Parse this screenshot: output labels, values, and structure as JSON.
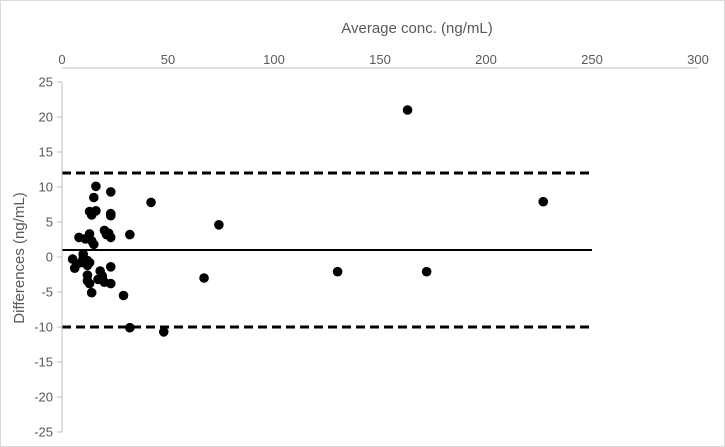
{
  "chart_data": {
    "type": "scatter",
    "title": "",
    "xlabel": "Average conc. (ng/mL)",
    "ylabel": "Differences (ng/mL)",
    "xlim": [
      0,
      300
    ],
    "ylim": [
      -25,
      25
    ],
    "x_ticks": [
      "0",
      "50",
      "100",
      "150",
      "200",
      "250",
      "300"
    ],
    "y_ticks": [
      "25",
      "20",
      "15",
      "10",
      "5",
      "0",
      "-5",
      "-10",
      "-15",
      "-20",
      "-25"
    ],
    "x_axis_position": "top",
    "grid": false,
    "legend": "none",
    "point_color": "#000000",
    "points": [
      {
        "x": 5,
        "y": -0.3
      },
      {
        "x": 6,
        "y": -1.6
      },
      {
        "x": 7,
        "y": -1.0
      },
      {
        "x": 8,
        "y": 2.8
      },
      {
        "x": 9,
        "y": -0.8
      },
      {
        "x": 10,
        "y": -0.2
      },
      {
        "x": 10,
        "y": 0.4
      },
      {
        "x": 11,
        "y": 2.6
      },
      {
        "x": 12,
        "y": -0.5
      },
      {
        "x": 12,
        "y": -1.2
      },
      {
        "x": 12,
        "y": -2.6
      },
      {
        "x": 12,
        "y": -3.4
      },
      {
        "x": 13,
        "y": 3.3
      },
      {
        "x": 13,
        "y": -3.8
      },
      {
        "x": 13,
        "y": -0.8
      },
      {
        "x": 13,
        "y": 6.5
      },
      {
        "x": 14,
        "y": -5.1
      },
      {
        "x": 14,
        "y": 6.0
      },
      {
        "x": 14,
        "y": 2.3
      },
      {
        "x": 15,
        "y": 8.5
      },
      {
        "x": 15,
        "y": 1.8
      },
      {
        "x": 16,
        "y": 10.1
      },
      {
        "x": 16,
        "y": 6.6
      },
      {
        "x": 17,
        "y": -3.2
      },
      {
        "x": 18,
        "y": -2.0
      },
      {
        "x": 19,
        "y": -3.0
      },
      {
        "x": 19,
        "y": -2.7
      },
      {
        "x": 20,
        "y": 3.8
      },
      {
        "x": 20,
        "y": -3.6
      },
      {
        "x": 21,
        "y": 3.2
      },
      {
        "x": 22,
        "y": 3.4
      },
      {
        "x": 23,
        "y": 2.8
      },
      {
        "x": 23,
        "y": 6.2
      },
      {
        "x": 23,
        "y": 5.9
      },
      {
        "x": 23,
        "y": 9.3
      },
      {
        "x": 23,
        "y": -1.4
      },
      {
        "x": 23,
        "y": -3.8
      },
      {
        "x": 29,
        "y": -5.5
      },
      {
        "x": 32,
        "y": 3.2
      },
      {
        "x": 32,
        "y": -10.1
      },
      {
        "x": 42,
        "y": 7.8
      },
      {
        "x": 48,
        "y": -10.7
      },
      {
        "x": 67,
        "y": -3.0
      },
      {
        "x": 74,
        "y": 4.6
      },
      {
        "x": 130,
        "y": -2.1
      },
      {
        "x": 163,
        "y": 21.0
      },
      {
        "x": 172,
        "y": -2.1
      },
      {
        "x": 227,
        "y": 7.9
      }
    ],
    "reference_lines": [
      {
        "y": 1,
        "style": "solid",
        "x_end": 250
      },
      {
        "y": 12,
        "style": "dashed",
        "x_end": 250
      },
      {
        "y": -10,
        "style": "dashed",
        "x_end": 250
      }
    ]
  }
}
